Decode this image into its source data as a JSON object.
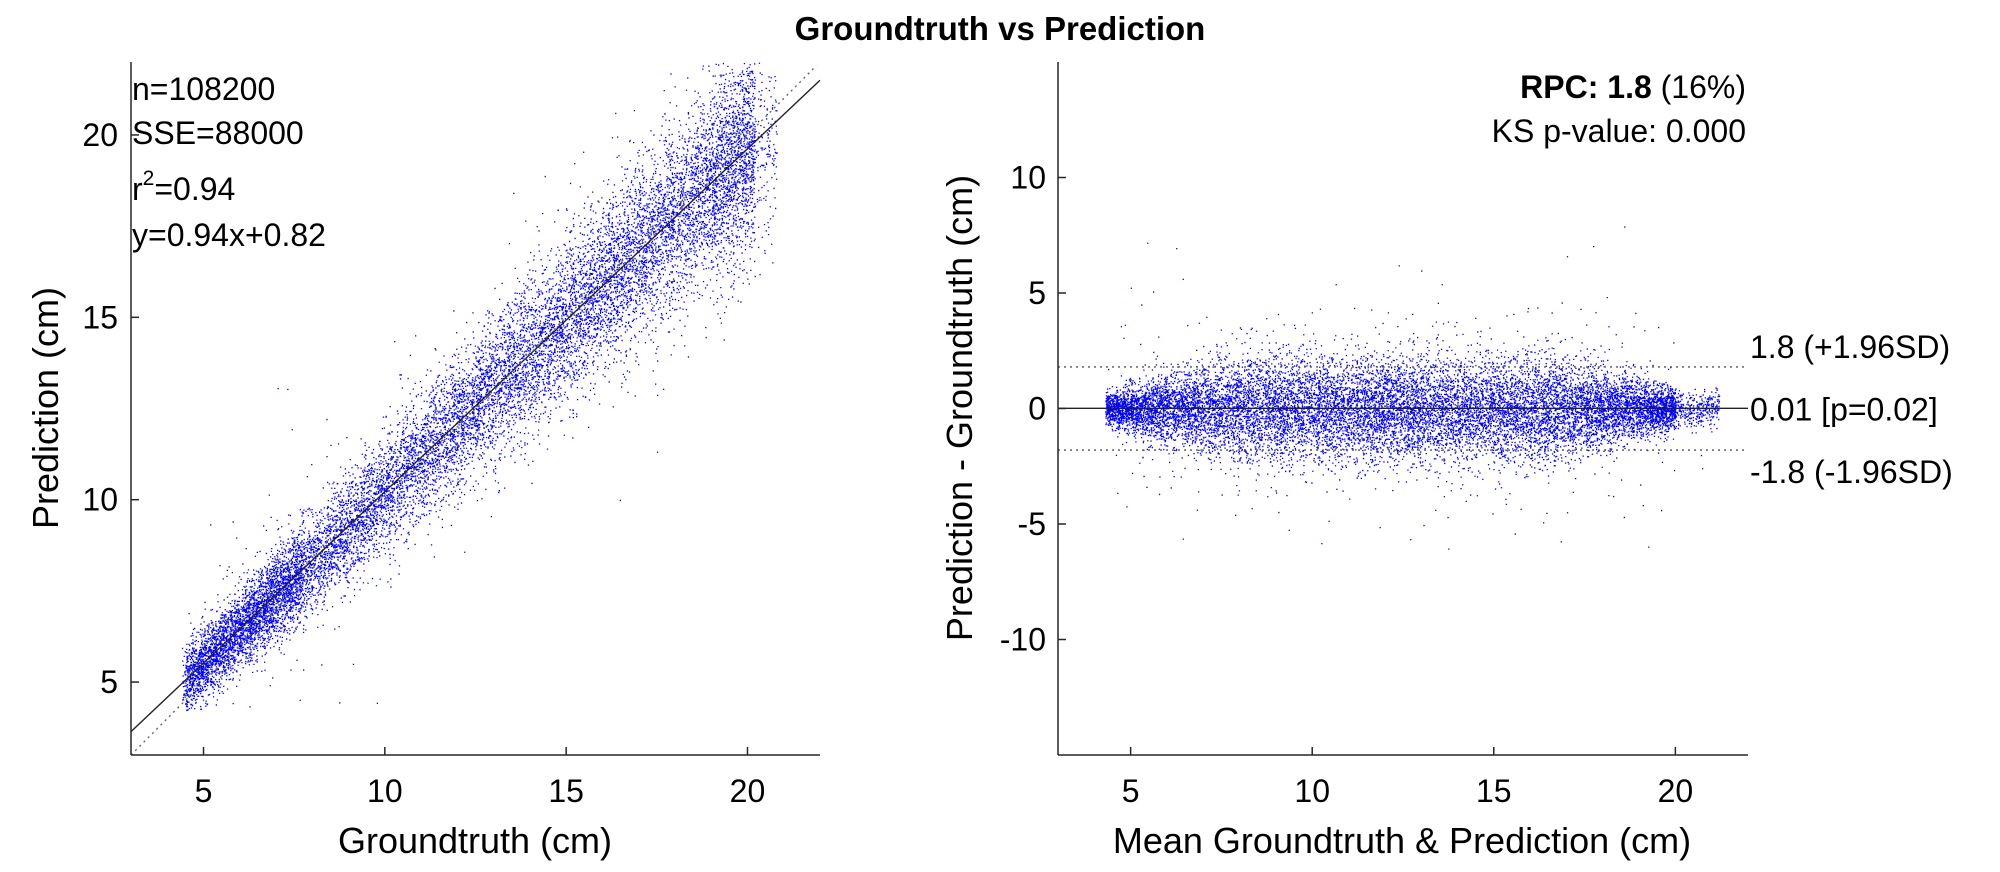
{
  "figure": {
    "title": "Groundtruth vs Prediction"
  },
  "chart_data": [
    {
      "type": "scatter",
      "xlabel": "Groundtruth (cm)",
      "ylabel": "Prediction (cm)",
      "xlim": [
        3,
        22
      ],
      "ylim": [
        3,
        22
      ],
      "xticks": [
        5,
        10,
        15,
        20
      ],
      "yticks": [
        5,
        10,
        15,
        20
      ],
      "marker_color": "#0000FF",
      "stats": {
        "n": "n=108200",
        "sse": "SSE=88000",
        "r2_base": "r",
        "r2_sup": "2",
        "r2_value": "=0.94",
        "fit": "y=0.94x+0.82"
      },
      "fit_line": {
        "slope": 0.94,
        "intercept": 0.82,
        "style": "solid"
      },
      "identity_line": {
        "slope": 1,
        "intercept": 0,
        "style": "dotted"
      },
      "n_points": 108200,
      "point_cloud_summary": {
        "x_range": [
          4.4,
          20.8
        ],
        "y_range": [
          4.2,
          22
        ]
      }
    },
    {
      "type": "scatter",
      "xlabel": "Mean Groundtruth & Prediction (cm)",
      "ylabel": "Prediction - Groundtruth (cm)",
      "xlim": [
        3,
        22
      ],
      "ylim": [
        -15,
        15
      ],
      "xticks": [
        5,
        10,
        15,
        20
      ],
      "yticks": [
        -10,
        -5,
        0,
        5,
        10
      ],
      "marker_color": "#0000FF",
      "rpc_label": "RPC: 1.8",
      "rpc_pct": " (16%)",
      "ks_text": "KS p-value: 0.000",
      "reference_lines": [
        {
          "y": 1.8,
          "label": "1.8 (+1.96SD)",
          "style": "dotted"
        },
        {
          "y": 0.01,
          "label": "0.01 [p=0.02]",
          "style": "solid"
        },
        {
          "y": -1.8,
          "label": "-1.8 (-1.96SD)",
          "style": "dotted"
        }
      ],
      "point_cloud_summary": {
        "x_range": [
          4.3,
          21.2
        ],
        "y_range": [
          -6.3,
          8.8
        ]
      }
    }
  ]
}
